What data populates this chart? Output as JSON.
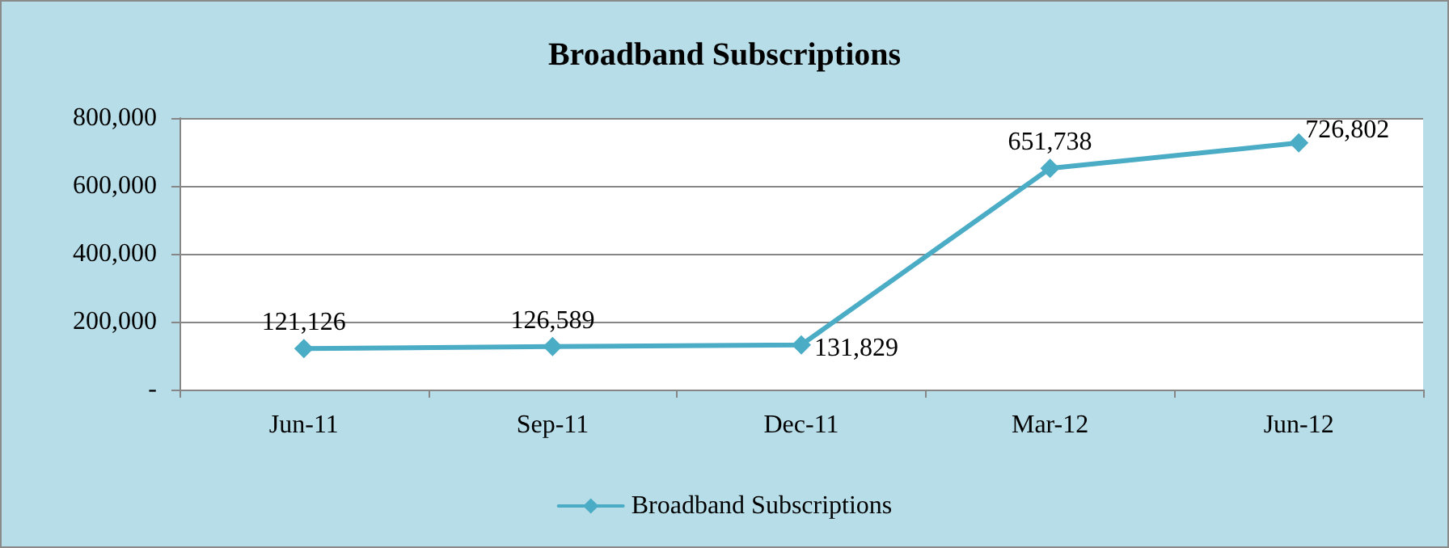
{
  "chart_data": {
    "type": "line",
    "title": "Broadband Subscriptions",
    "categories": [
      "Jun-11",
      "Sep-11",
      "Dec-11",
      "Mar-12",
      "Jun-12"
    ],
    "series": [
      {
        "name": "Broadband Subscriptions",
        "color": "#4bacc6",
        "values": [
          121126,
          126589,
          131829,
          651738,
          726802
        ],
        "value_labels": [
          "121,126",
          "126,589",
          "131,829",
          "651,738",
          "726,802"
        ]
      }
    ],
    "ylim": [
      0,
      800000
    ],
    "yticks": [
      {
        "value": 0,
        "label": "-"
      },
      {
        "value": 200000,
        "label": "200,000"
      },
      {
        "value": 400000,
        "label": "400,000"
      },
      {
        "value": 600000,
        "label": "600,000"
      },
      {
        "value": 800000,
        "label": "800,000"
      }
    ],
    "grid": "y",
    "legend": "bottom",
    "marker": "diamond",
    "line_style": "solid"
  }
}
